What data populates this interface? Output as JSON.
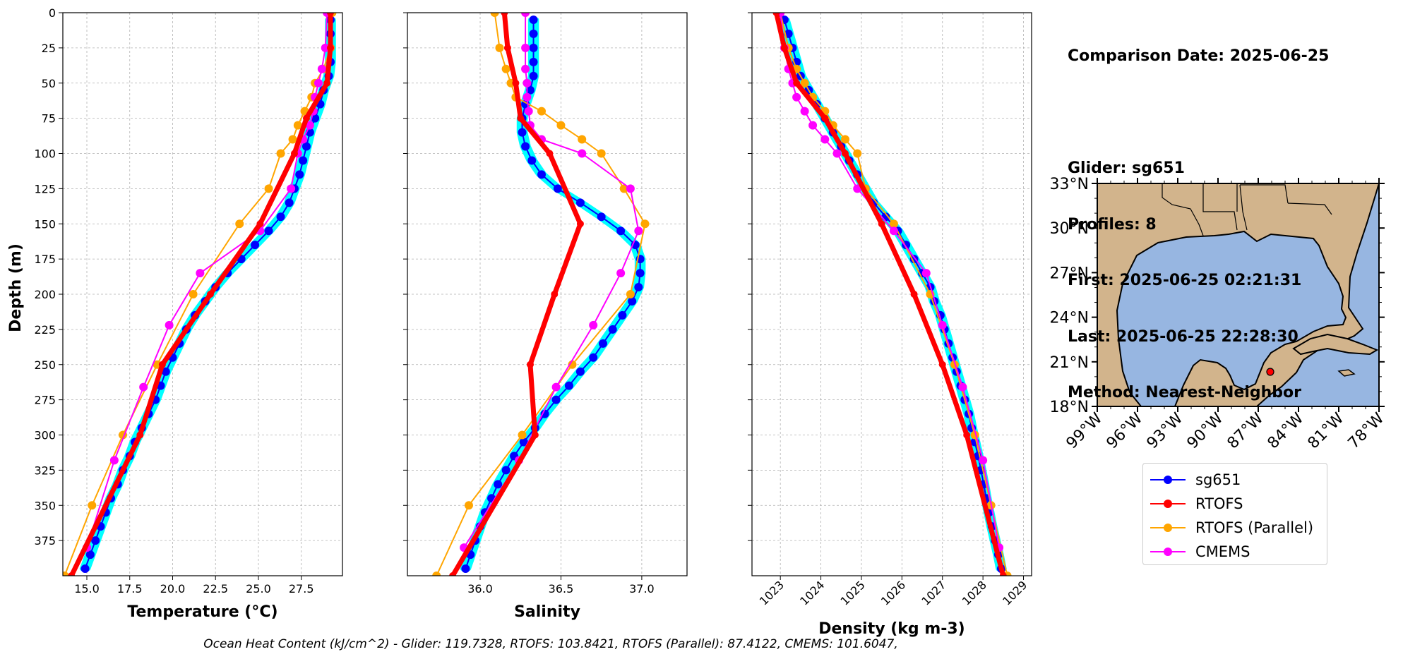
{
  "info": {
    "comparison_date": "Comparison Date: 2025-06-25",
    "glider": "Glider: sg651",
    "profiles": "Profiles: 8",
    "first": "First: 2025-06-25 02:21:31",
    "last": "Last: 2025-06-25 22:28:30",
    "method": "Method: Nearest-Neighbor"
  },
  "footer": "Ocean Heat Content (kJ/cm^2) - Glider: 119.7328,  RTOFS: 103.8421,  RTOFS (Parallel): 87.4122,  CMEMS: 101.6047,",
  "legend": [
    {
      "name": "sg651",
      "color": "#0000ff"
    },
    {
      "name": "RTOFS",
      "color": "#ff0000"
    },
    {
      "name": "RTOFS (Parallel)",
      "color": "#ffa500"
    },
    {
      "name": "CMEMS",
      "color": "#ff00ff"
    }
  ],
  "chart_data": [
    {
      "type": "line",
      "xlabel": "Temperature (°C)",
      "ylabel": "Depth (m)",
      "xlim": [
        13.6,
        29.9
      ],
      "ylim": [
        400,
        0
      ],
      "xticks": [
        "15.0",
        "17.5",
        "20.0",
        "22.5",
        "25.0",
        "27.5"
      ],
      "xtick_values": [
        15,
        17.5,
        20,
        22.5,
        25,
        27.5
      ],
      "yticks": [
        "0",
        "25",
        "50",
        "75",
        "100",
        "125",
        "150",
        "175",
        "200",
        "225",
        "250",
        "275",
        "300",
        "325",
        "350",
        "375"
      ],
      "grid": true,
      "series": [
        {
          "name": "sg651",
          "color": "#0000ff",
          "depth": [
            5,
            15,
            25,
            35,
            45,
            55,
            65,
            75,
            85,
            95,
            105,
            115,
            125,
            135,
            145,
            155,
            165,
            175,
            185,
            195,
            205,
            215,
            225,
            235,
            245,
            255,
            265,
            275,
            285,
            295,
            305,
            315,
            325,
            335,
            345,
            355,
            365,
            375,
            385,
            395
          ],
          "values": [
            29.2,
            29.2,
            29.2,
            29.2,
            29.1,
            28.8,
            28.6,
            28.3,
            28.0,
            27.8,
            27.6,
            27.4,
            27.1,
            26.8,
            26.3,
            25.6,
            24.8,
            24.0,
            23.2,
            22.5,
            21.9,
            21.3,
            20.8,
            20.4,
            20.0,
            19.6,
            19.3,
            19.0,
            18.6,
            18.2,
            17.8,
            17.5,
            17.1,
            16.8,
            16.4,
            16.1,
            15.8,
            15.5,
            15.2,
            14.9
          ]
        },
        {
          "name": "RTOFS",
          "color": "#ff0000",
          "depth": [
            0,
            25,
            50,
            75,
            100,
            150,
            200,
            250,
            300,
            400
          ],
          "values": [
            29.2,
            29.2,
            29.0,
            27.8,
            27.1,
            25.1,
            22.2,
            19.4,
            18.1,
            14.1
          ]
        },
        {
          "name": "RTOFS (Parallel)",
          "color": "#ffa500",
          "depth": [
            0,
            25,
            40,
            50,
            60,
            70,
            80,
            90,
            100,
            125,
            150,
            200,
            250,
            300,
            350,
            400
          ],
          "values": [
            29.3,
            29.2,
            28.8,
            28.3,
            28.1,
            27.7,
            27.3,
            27.0,
            26.3,
            25.6,
            23.9,
            21.2,
            19.1,
            17.1,
            15.3,
            13.7
          ]
        },
        {
          "name": "CMEMS",
          "color": "#ff00ff",
          "depth": [
            0,
            25,
            40,
            50,
            60,
            70,
            80,
            90,
            100,
            125,
            155,
            185,
            222,
            266,
            318,
            380
          ],
          "values": [
            29.0,
            28.9,
            28.7,
            28.5,
            28.3,
            28.2,
            28.0,
            27.6,
            27.3,
            26.9,
            25.1,
            21.6,
            19.8,
            18.3,
            16.6,
            15.0
          ]
        }
      ]
    },
    {
      "type": "line",
      "xlabel": "Salinity",
      "xlim": [
        35.55,
        37.28
      ],
      "ylim": [
        400,
        0
      ],
      "xticks": [
        "36.0",
        "36.5",
        "37.0"
      ],
      "xtick_values": [
        36.0,
        36.5,
        37.0
      ],
      "grid": true,
      "series": [
        {
          "name": "sg651",
          "color": "#0000ff",
          "depth": [
            5,
            15,
            25,
            35,
            45,
            55,
            65,
            75,
            85,
            95,
            105,
            115,
            125,
            135,
            145,
            155,
            165,
            175,
            185,
            195,
            205,
            215,
            225,
            235,
            245,
            255,
            265,
            275,
            285,
            295,
            305,
            315,
            325,
            335,
            345,
            355,
            365,
            375,
            385,
            395
          ],
          "values": [
            36.33,
            36.33,
            36.33,
            36.33,
            36.33,
            36.31,
            36.28,
            36.26,
            36.26,
            36.28,
            36.32,
            36.38,
            36.48,
            36.62,
            36.75,
            36.87,
            36.96,
            36.99,
            36.99,
            36.98,
            36.94,
            36.88,
            36.82,
            36.76,
            36.7,
            36.62,
            36.55,
            36.47,
            36.4,
            36.34,
            36.27,
            36.21,
            36.16,
            36.11,
            36.07,
            36.03,
            36.0,
            35.97,
            35.94,
            35.91
          ]
        },
        {
          "name": "RTOFS",
          "color": "#ff0000",
          "depth": [
            0,
            25,
            50,
            75,
            100,
            150,
            200,
            250,
            300,
            400
          ],
          "values": [
            36.15,
            36.17,
            36.22,
            36.25,
            36.43,
            36.62,
            36.46,
            36.31,
            36.34,
            35.83
          ]
        },
        {
          "name": "RTOFS (Parallel)",
          "color": "#ffa500",
          "depth": [
            0,
            25,
            40,
            50,
            60,
            70,
            80,
            90,
            100,
            125,
            150,
            200,
            250,
            300,
            350,
            400
          ],
          "values": [
            36.09,
            36.12,
            36.16,
            36.19,
            36.22,
            36.38,
            36.5,
            36.63,
            36.75,
            36.89,
            37.02,
            36.93,
            36.57,
            36.26,
            35.93,
            35.73
          ]
        },
        {
          "name": "CMEMS",
          "color": "#ff00ff",
          "depth": [
            0,
            25,
            40,
            50,
            60,
            70,
            80,
            90,
            100,
            125,
            155,
            185,
            222,
            266,
            318,
            380
          ],
          "values": [
            36.28,
            36.28,
            36.28,
            36.29,
            36.29,
            36.3,
            36.31,
            36.38,
            36.63,
            36.93,
            36.98,
            36.87,
            36.7,
            36.47,
            36.24,
            35.9
          ]
        }
      ]
    },
    {
      "type": "line",
      "xlabel": "Density (kg m-3)",
      "xlim": [
        1022.3,
        1029.2
      ],
      "ylim": [
        400,
        0
      ],
      "xticks": [
        "1023",
        "1024",
        "1025",
        "1026",
        "1027",
        "1028",
        "1029"
      ],
      "xtick_values": [
        1023,
        1024,
        1025,
        1026,
        1027,
        1028,
        1029
      ],
      "grid": true,
      "series": [
        {
          "name": "sg651",
          "color": "#0000ff",
          "depth": [
            5,
            15,
            25,
            35,
            45,
            55,
            65,
            75,
            85,
            95,
            105,
            115,
            125,
            135,
            145,
            155,
            165,
            175,
            185,
            195,
            205,
            215,
            225,
            235,
            245,
            255,
            265,
            275,
            285,
            295,
            305,
            315,
            325,
            335,
            345,
            355,
            365,
            375,
            385,
            395
          ],
          "values": [
            1023.1,
            1023.2,
            1023.3,
            1023.4,
            1023.5,
            1023.7,
            1023.9,
            1024.1,
            1024.3,
            1024.5,
            1024.7,
            1024.9,
            1025.1,
            1025.3,
            1025.6,
            1025.9,
            1026.1,
            1026.3,
            1026.5,
            1026.7,
            1026.8,
            1026.95,
            1027.05,
            1027.15,
            1027.25,
            1027.35,
            1027.45,
            1027.55,
            1027.65,
            1027.72,
            1027.8,
            1027.88,
            1027.95,
            1028.02,
            1028.08,
            1028.15,
            1028.22,
            1028.3,
            1028.38,
            1028.45
          ]
        },
        {
          "name": "RTOFS",
          "color": "#ff0000",
          "depth": [
            0,
            25,
            50,
            75,
            100,
            150,
            200,
            250,
            300,
            400
          ],
          "values": [
            1022.9,
            1023.1,
            1023.4,
            1024.1,
            1024.6,
            1025.5,
            1026.3,
            1027.0,
            1027.6,
            1028.5
          ]
        },
        {
          "name": "RTOFS (Parallel)",
          "color": "#ffa500",
          "depth": [
            0,
            25,
            40,
            50,
            60,
            70,
            80,
            90,
            100,
            125,
            150,
            200,
            250,
            300,
            350,
            400
          ],
          "values": [
            1023.0,
            1023.2,
            1023.4,
            1023.6,
            1023.8,
            1024.1,
            1024.3,
            1024.6,
            1024.9,
            1025.1,
            1025.8,
            1026.7,
            1027.3,
            1027.8,
            1028.2,
            1028.6
          ]
        },
        {
          "name": "CMEMS",
          "color": "#ff00ff",
          "depth": [
            0,
            25,
            40,
            50,
            60,
            70,
            80,
            90,
            100,
            125,
            155,
            185,
            222,
            266,
            318,
            380
          ],
          "values": [
            1023.0,
            1023.1,
            1023.2,
            1023.3,
            1023.4,
            1023.6,
            1023.8,
            1024.1,
            1024.4,
            1024.9,
            1025.8,
            1026.6,
            1027.0,
            1027.5,
            1028.0,
            1028.4
          ]
        }
      ]
    }
  ],
  "map": {
    "lat_ticks": [
      "33°N",
      "30°N",
      "27°N",
      "24°N",
      "21°N",
      "18°N"
    ],
    "lon_ticks": [
      "99°W",
      "96°W",
      "93°W",
      "90°W",
      "87°W",
      "84°W",
      "81°W",
      "78°W"
    ],
    "land_color": "#d2b48c",
    "ocean_color": "#97b6e1",
    "marker_color": "#ff0000"
  }
}
